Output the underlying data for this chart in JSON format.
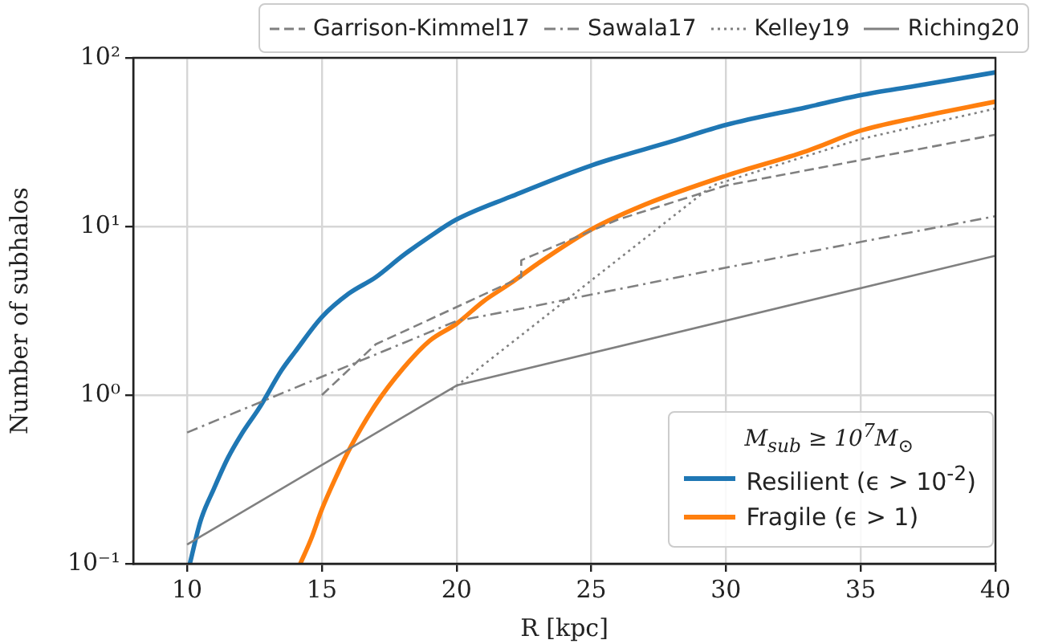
{
  "chart_data": {
    "type": "line",
    "xlabel": "R [kpc]",
    "ylabel": "Number of subhalos",
    "legend_title": "M$_{sub}$ ≥ 10$^{7}$M$_{⊙}$",
    "xlim": [
      8,
      40
    ],
    "xticks": [
      10,
      15,
      20,
      25,
      30,
      35,
      40
    ],
    "ylim": [
      0.1,
      100
    ],
    "yticks": [
      {
        "value": 0.1,
        "label": "10⁻¹"
      },
      {
        "value": 1,
        "label": "10⁰"
      },
      {
        "value": 10,
        "label": "10¹"
      },
      {
        "value": 100,
        "label": "10²"
      }
    ],
    "log": "y",
    "grid": true,
    "legend": "top",
    "series": [
      {
        "name": "Garrison-Kimmel17",
        "color": "#808080",
        "line_style": "dashed",
        "x": [
          15,
          17,
          22.4,
          22.4,
          26,
          30,
          40
        ],
        "values": [
          1.0,
          2.0,
          5.0,
          6.3,
          11,
          17.5,
          35
        ]
      },
      {
        "name": "Sawala17",
        "color": "#808080",
        "line_style": "dashdot",
        "x": [
          10,
          20,
          22.6,
          30,
          40
        ],
        "values": [
          0.6,
          2.75,
          3.3,
          5.7,
          11.5
        ]
      },
      {
        "name": "Kelley19",
        "color": "#808080",
        "line_style": "dotted",
        "x": [
          19.8,
          29.5,
          35,
          40
        ],
        "values": [
          1.07,
          17.5,
          33,
          50
        ]
      },
      {
        "name": "Riching20",
        "color": "#808080",
        "line_style": "solid",
        "x": [
          10,
          20,
          40
        ],
        "values": [
          0.13,
          1.14,
          6.7
        ]
      },
      {
        "name": "Resilient (ϵ > 10$^{-2}$)",
        "color": "#1f77b4",
        "x": [
          10.1,
          10.5,
          11,
          11.5,
          12,
          12.7,
          13.5,
          14,
          15,
          16,
          17,
          18,
          19,
          20,
          22,
          25,
          28,
          30,
          33,
          35,
          37,
          40
        ],
        "values": [
          0.1,
          0.18,
          0.28,
          0.42,
          0.58,
          0.85,
          1.4,
          1.8,
          2.9,
          4.0,
          5.0,
          6.7,
          8.7,
          11,
          15,
          23,
          32,
          40,
          51,
          60,
          68,
          82
        ]
      },
      {
        "name": "Fragile (ϵ > 1)",
        "color": "#ff7f0e",
        "x": [
          14.2,
          14.6,
          15,
          15.5,
          16,
          17,
          18,
          19,
          20,
          21,
          22,
          23,
          25,
          27,
          30,
          33,
          35,
          37,
          40
        ],
        "values": [
          0.1,
          0.14,
          0.21,
          0.32,
          0.47,
          0.88,
          1.43,
          2.1,
          2.65,
          3.6,
          4.6,
          6.0,
          9.6,
          13.5,
          20,
          28,
          37,
          44,
          55
        ]
      }
    ]
  }
}
